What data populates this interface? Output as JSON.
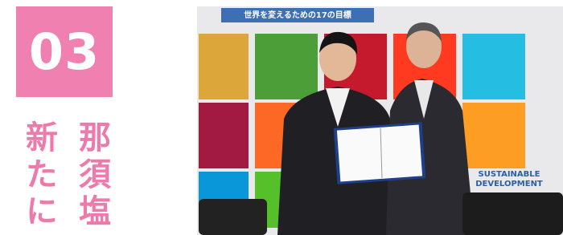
{
  "section_number": "03",
  "heading": {
    "columns": [
      "那須塩",
      "新たに"
    ]
  },
  "photo": {
    "banner": "世界を変えるための17の目標",
    "sign_lines": [
      "SUSTAINABLE",
      "DEVELOPMENT"
    ]
  }
}
